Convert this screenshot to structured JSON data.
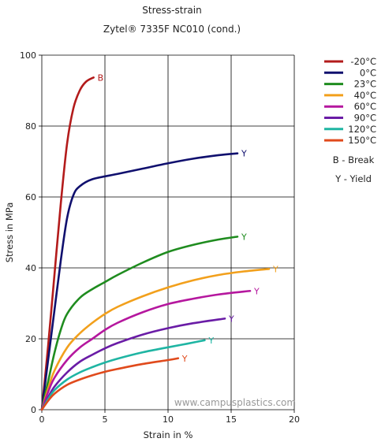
{
  "chart_data": {
    "type": "line",
    "title": "Stress-strain",
    "subtitle": "Zytel® 7335F NC010 (cond.)",
    "xlabel": "Strain in %",
    "ylabel": "Stress in MPa",
    "xlim": [
      0,
      20
    ],
    "ylim": [
      0,
      100
    ],
    "xticks": [
      "0",
      "5",
      "10",
      "15",
      "20"
    ],
    "yticks": [
      "0",
      "20",
      "40",
      "60",
      "80",
      "100"
    ],
    "grid": true,
    "legend_position": "right",
    "series": [
      {
        "name": "-20°C",
        "color": "#b31b1b",
        "end_label": "B",
        "x": [
          0,
          0.5,
          1,
          1.5,
          2,
          2.5,
          3,
          3.5,
          4.1
        ],
        "y": [
          0,
          18,
          38,
          58,
          75,
          85,
          90,
          92.5,
          93.7
        ]
      },
      {
        "name": "0°C",
        "color": "#10106e",
        "end_label": "Y",
        "x": [
          0,
          0.5,
          1,
          1.5,
          2,
          2.5,
          3,
          4,
          6,
          8,
          10,
          12,
          14,
          15.5
        ],
        "y": [
          0,
          14,
          28,
          42,
          54,
          60.5,
          63,
          65,
          66.5,
          68,
          69.5,
          70.8,
          71.8,
          72.3
        ]
      },
      {
        "name": "23°C",
        "color": "#1f8c1f",
        "end_label": "Y",
        "x": [
          0,
          0.5,
          1,
          1.5,
          2,
          3,
          4,
          5,
          6,
          8,
          10,
          12,
          14,
          15.5
        ],
        "y": [
          0,
          8,
          16,
          22.5,
          27,
          31.5,
          34,
          36,
          38,
          41.5,
          44.5,
          46.5,
          48,
          48.8
        ]
      },
      {
        "name": "40°C",
        "color": "#f2a01c",
        "end_label": "Y",
        "x": [
          0,
          0.5,
          1,
          2,
          3,
          4,
          5,
          6,
          8,
          10,
          12,
          14,
          16,
          18
        ],
        "y": [
          0,
          6,
          11,
          17.5,
          21.5,
          24.5,
          27,
          29,
          32,
          34.5,
          36.5,
          38,
          39,
          39.7
        ]
      },
      {
        "name": "60°C",
        "color": "#b5179e",
        "end_label": "Y",
        "x": [
          0,
          0.5,
          1,
          2,
          3,
          4,
          5,
          6,
          8,
          10,
          12,
          14,
          16.5
        ],
        "y": [
          0,
          5,
          9,
          14,
          17.5,
          20,
          22.5,
          24.5,
          27.5,
          29.8,
          31.3,
          32.5,
          33.5
        ]
      },
      {
        "name": "90°C",
        "color": "#6a1ca6",
        "end_label": "Y",
        "x": [
          0,
          0.5,
          1,
          2,
          3,
          4,
          5,
          6,
          8,
          10,
          12,
          14.5
        ],
        "y": [
          0,
          3.5,
          6.5,
          10.5,
          13.5,
          15.5,
          17.3,
          18.8,
          21.2,
          23,
          24.4,
          25.7
        ]
      },
      {
        "name": "120°C",
        "color": "#1fb5a3",
        "end_label": "Y",
        "x": [
          0,
          0.5,
          1,
          2,
          3,
          4,
          5,
          6,
          8,
          10,
          11.5,
          12.9
        ],
        "y": [
          0,
          3,
          5.5,
          8.5,
          10.5,
          12,
          13.3,
          14.4,
          16.2,
          17.6,
          18.6,
          19.6
        ]
      },
      {
        "name": "150°C",
        "color": "#e04a1c",
        "end_label": "Y",
        "x": [
          0,
          0.5,
          1,
          2,
          3,
          4,
          5,
          6,
          8,
          10,
          10.8
        ],
        "y": [
          0,
          2.5,
          4.5,
          7,
          8.5,
          9.7,
          10.7,
          11.5,
          12.9,
          14,
          14.5
        ]
      }
    ],
    "notes": [
      "B - Break",
      "Y - Yield"
    ],
    "watermark": "www.campusplastics.com"
  }
}
